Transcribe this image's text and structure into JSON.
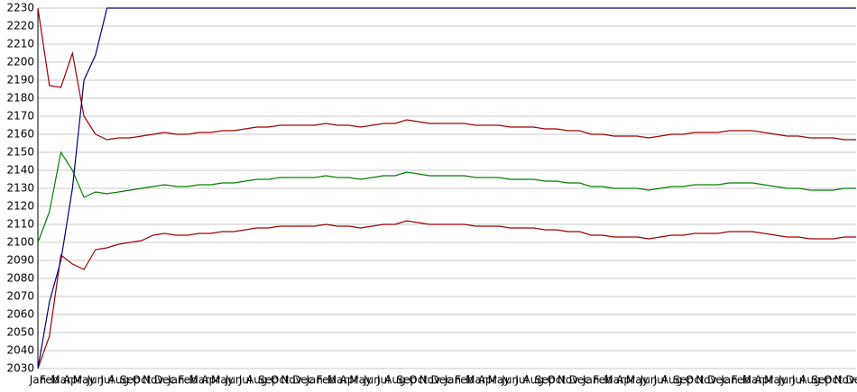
{
  "chart_data": {
    "type": "line",
    "categories": [
      "Jan",
      "Feb",
      "Mar",
      "Apr",
      "May",
      "Jun",
      "Jul",
      "Aug",
      "Sep",
      "Oct",
      "Nov",
      "Dec",
      "Jan",
      "Feb",
      "Mar",
      "Apr",
      "May",
      "Jun",
      "Jul",
      "Aug",
      "Sep",
      "Oct",
      "Nov",
      "Dec",
      "Jan",
      "Feb",
      "Mar",
      "Apr",
      "May",
      "Jun",
      "Jul",
      "Aug",
      "Sep",
      "Oct",
      "Nov",
      "Dec",
      "Jan",
      "Feb",
      "Mar",
      "Apr",
      "May",
      "Jun",
      "Jul",
      "Aug",
      "Sep",
      "Oct",
      "Nov",
      "Dec",
      "Jan",
      "Feb",
      "Mar",
      "Apr",
      "May",
      "Jun",
      "Jul",
      "Aug",
      "Sep",
      "Oct",
      "Nov",
      "Dec",
      "Jan",
      "Feb",
      "Mar",
      "Apr",
      "May",
      "Jun",
      "Jul",
      "Aug",
      "Sep",
      "Oct",
      "Nov",
      "Dec"
    ],
    "series": [
      {
        "color": "#a00000",
        "values": [
          2230,
          2187,
          2186,
          2205,
          2170,
          2160,
          2157,
          2158,
          2158,
          2159,
          2160,
          2161,
          2160,
          2160,
          2161,
          2161,
          2162,
          2162,
          2163,
          2164,
          2164,
          2165,
          2165,
          2165,
          2165,
          2166,
          2165,
          2165,
          2164,
          2165,
          2166,
          2166,
          2168,
          2167,
          2166,
          2166,
          2166,
          2166,
          2165,
          2165,
          2165,
          2164,
          2164,
          2164,
          2163,
          2163,
          2162,
          2162,
          2160,
          2160,
          2159,
          2159,
          2159,
          2158,
          2159,
          2160,
          2160,
          2161,
          2161,
          2161,
          2162,
          2162,
          2162,
          2161,
          2160,
          2159,
          2159,
          2158,
          2158,
          2158,
          2157,
          2157
        ]
      },
      {
        "color": "#008000",
        "values": [
          2100,
          2117,
          2150,
          2140,
          2125,
          2128,
          2127,
          2128,
          2129,
          2130,
          2131,
          2132,
          2131,
          2131,
          2132,
          2132,
          2133,
          2133,
          2134,
          2135,
          2135,
          2136,
          2136,
          2136,
          2136,
          2137,
          2136,
          2136,
          2135,
          2136,
          2137,
          2137,
          2139,
          2138,
          2137,
          2137,
          2137,
          2137,
          2136,
          2136,
          2136,
          2135,
          2135,
          2135,
          2134,
          2134,
          2133,
          2133,
          2131,
          2131,
          2130,
          2130,
          2130,
          2129,
          2130,
          2131,
          2131,
          2132,
          2132,
          2132,
          2133,
          2133,
          2133,
          2132,
          2131,
          2130,
          2130,
          2129,
          2129,
          2129,
          2130,
          2130
        ]
      },
      {
        "color": "#a00000",
        "values": [
          2030,
          2048,
          2093,
          2088,
          2085,
          2096,
          2097,
          2099,
          2100,
          2101,
          2104,
          2105,
          2104,
          2104,
          2105,
          2105,
          2106,
          2106,
          2107,
          2108,
          2108,
          2109,
          2109,
          2109,
          2109,
          2110,
          2109,
          2109,
          2108,
          2109,
          2110,
          2110,
          2112,
          2111,
          2110,
          2110,
          2110,
          2110,
          2109,
          2109,
          2109,
          2108,
          2108,
          2108,
          2107,
          2107,
          2106,
          2106,
          2104,
          2104,
          2103,
          2103,
          2103,
          2102,
          2103,
          2104,
          2104,
          2105,
          2105,
          2105,
          2106,
          2106,
          2106,
          2105,
          2104,
          2103,
          2103,
          2102,
          2102,
          2102,
          2103,
          2103
        ]
      },
      {
        "color": "#000080",
        "values": [
          2030,
          2067,
          2090,
          2130,
          2190,
          2204,
          2230,
          2230,
          2230,
          2230,
          2230,
          2230,
          2230,
          2230,
          2230,
          2230,
          2230,
          2230,
          2230,
          2230,
          2230,
          2230,
          2230,
          2230,
          2230,
          2230,
          2230,
          2230,
          2230,
          2230,
          2230,
          2230,
          2230,
          2230,
          2230,
          2230,
          2230,
          2230,
          2230,
          2230,
          2230,
          2230,
          2230,
          2230,
          2230,
          2230,
          2230,
          2230,
          2230,
          2230,
          2230,
          2230,
          2230,
          2230,
          2230,
          2230,
          2230,
          2230,
          2230,
          2230,
          2230,
          2230,
          2230,
          2230,
          2230,
          2230,
          2230,
          2230,
          2230,
          2230,
          2230,
          2230
        ]
      }
    ],
    "ylim": [
      2030,
      2230
    ],
    "yticks": [
      2030,
      2040,
      2050,
      2060,
      2070,
      2080,
      2090,
      2100,
      2110,
      2120,
      2130,
      2140,
      2150,
      2160,
      2170,
      2180,
      2190,
      2200,
      2210,
      2220,
      2230
    ],
    "grid": true
  }
}
